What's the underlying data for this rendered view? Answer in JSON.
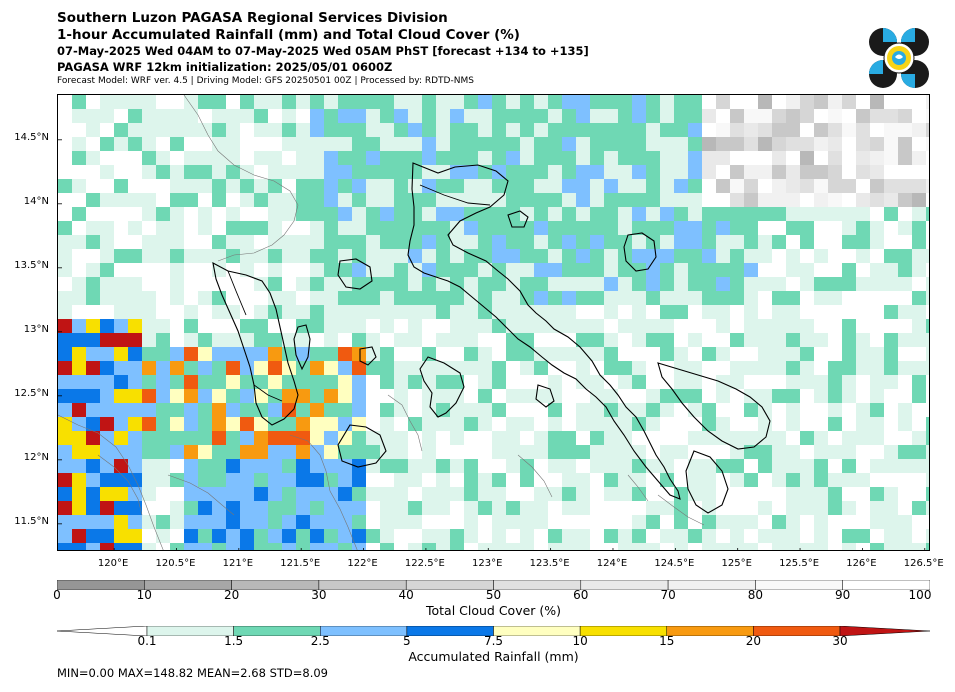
{
  "header": {
    "line1": "Southern Luzon PAGASA Regional Services Division",
    "line2": "1-hour Accumulated Rainfall (mm) and Total Cloud Cover (%)",
    "line3": "07-May-2025 Wed 04AM to 07-May-2025 Wed 05AM PhST [forecast +134 to +135]",
    "line4": "PAGASA WRF 12km initialization: 2025/05/01 0600Z",
    "line5": "Forecast Model: WRF ver. 4.5 | Driving Model: GFS 20250501 00Z | Processed by: RDTD-NMS"
  },
  "logo": {
    "icon": "pagasa-logo-icon",
    "colors": [
      "#1a1a1a",
      "#29abe2",
      "#f7d417"
    ]
  },
  "map": {
    "lat_labels": [
      "14.5°N",
      "14°N",
      "13.5°N",
      "13°N",
      "12.5°N",
      "12°N",
      "11.5°N"
    ],
    "lat_values": [
      14.5,
      14.0,
      13.5,
      13.0,
      12.5,
      12.0,
      11.5
    ],
    "lon_labels": [
      "120°E",
      "120.5°E",
      "121°E",
      "121.5°E",
      "122°E",
      "122.5°E",
      "123°E",
      "123.5°E",
      "124°E",
      "124.5°E",
      "125°E",
      "125.5°E",
      "126°E",
      "126.5°E"
    ],
    "lon_values": [
      120.0,
      120.5,
      121.0,
      121.5,
      122.0,
      122.5,
      123.0,
      123.5,
      124.0,
      124.5,
      125.0,
      125.5,
      126.0,
      126.5
    ],
    "extent": {
      "lon_min": 119.55,
      "lon_max": 126.55,
      "lat_min": 11.28,
      "lat_max": 14.85
    }
  },
  "cloud_bar": {
    "title": "Total Cloud Cover (%)",
    "ticks": [
      "0",
      "10",
      "20",
      "30",
      "40",
      "50",
      "60",
      "70",
      "80",
      "90",
      "100"
    ],
    "colors": [
      "#969696",
      "#a7a7a7",
      "#b8b8b8",
      "#c8c8c8",
      "#d6d6d6",
      "#e0e0e0",
      "#e9e9e9",
      "#f1f1f1",
      "#f8f8f8",
      "#ffffff"
    ]
  },
  "rain_bar": {
    "title": "Accumulated Rainfall (mm)",
    "ticks": [
      "0.1",
      "1.5",
      "2.5",
      "5",
      "7.5",
      "10",
      "15",
      "20",
      "30"
    ],
    "colors": [
      "#ddf5ec",
      "#6fd8b4",
      "#7ec0ff",
      "#0a78e8",
      "#ffffc0",
      "#f8e000",
      "#f89a10",
      "#f05a10",
      "#c01414"
    ]
  },
  "stats": "MIN=0.00   MAX=148.82   MEAN=2.68   STD=8.09"
}
